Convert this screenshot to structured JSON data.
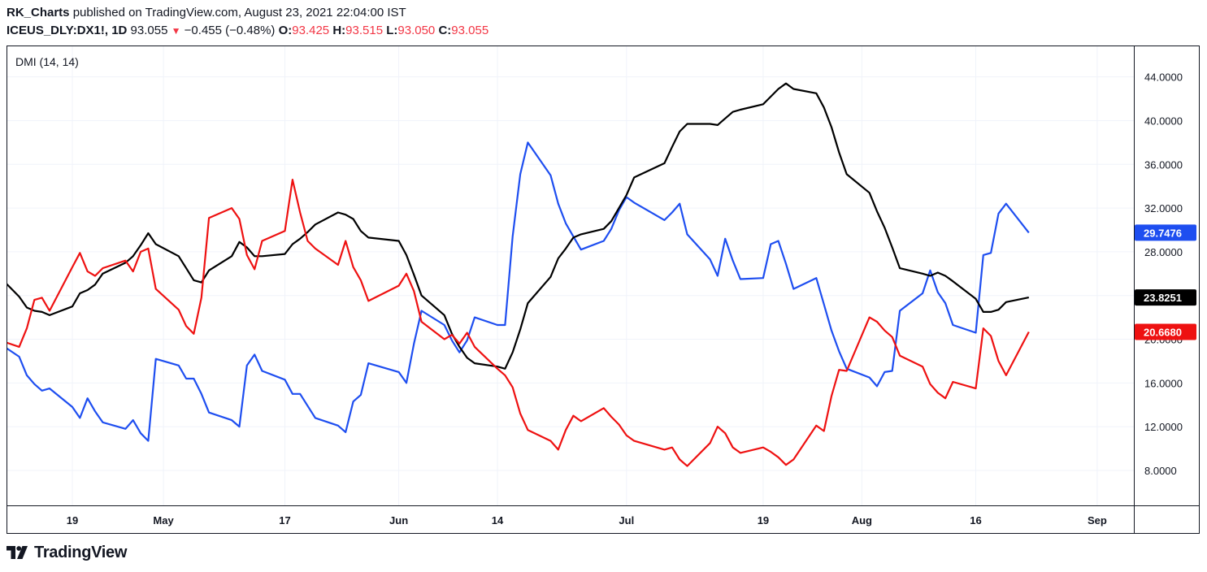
{
  "header": {
    "author": "RK_Charts",
    "published_text": "published on TradingView.com, August 23, 2021 22:04:00 IST",
    "symbol": "ICEUS_DLY:DX1!, 1D",
    "last": "93.055",
    "change_arrow": "▼",
    "change": "−0.455 (−0.48%)",
    "o_label": "O:",
    "o_value": "93.425",
    "h_label": "H:",
    "h_value": "93.515",
    "l_label": "L:",
    "l_value": "93.050",
    "c_label": "C:",
    "c_value": "93.055"
  },
  "indicator_label": "DMI (14, 14)",
  "footer": {
    "brand": "TradingView",
    "logo_icon": "tradingview-logo-icon"
  },
  "colors": {
    "plus_di": "#1e4ef0",
    "minus_di": "#ee1111",
    "adx": "#000000",
    "grid": "#f0f3fa"
  },
  "chart_data": {
    "type": "line",
    "title": "DMI (14, 14)",
    "x_tick_labels": [
      "19",
      "May",
      "17",
      "Jun",
      "14",
      "Jul",
      "19",
      "Aug",
      "16",
      "Sep"
    ],
    "ylim": [
      4.8,
      46.8
    ],
    "y_tick_values": [
      8,
      12,
      16,
      20,
      24,
      28,
      32,
      36,
      40,
      44
    ],
    "y_tick_labels": [
      "8.0000",
      "12.0000",
      "16.0000",
      "20.0000",
      "24.0000",
      "28.0000",
      "32.0000",
      "36.0000",
      "40.0000",
      "44.0000"
    ],
    "grid": true,
    "last_value_badges": [
      {
        "series": "+DI",
        "label": "29.7476",
        "value": 29.7476
      },
      {
        "series": "ADX",
        "label": "23.8251",
        "value": 23.8251
      },
      {
        "series": "-DI",
        "label": "20.6680",
        "value": 20.668
      }
    ],
    "dates": [
      "2021-04-09",
      "2021-04-12",
      "2021-04-13",
      "2021-04-14",
      "2021-04-15",
      "2021-04-16",
      "2021-04-19",
      "2021-04-20",
      "2021-04-21",
      "2021-04-22",
      "2021-04-23",
      "2021-04-26",
      "2021-04-27",
      "2021-04-28",
      "2021-04-29",
      "2021-04-30",
      "2021-05-03",
      "2021-05-04",
      "2021-05-05",
      "2021-05-06",
      "2021-05-07",
      "2021-05-10",
      "2021-05-11",
      "2021-05-12",
      "2021-05-13",
      "2021-05-14",
      "2021-05-17",
      "2021-05-18",
      "2021-05-19",
      "2021-05-20",
      "2021-05-21",
      "2021-05-24",
      "2021-05-25",
      "2021-05-26",
      "2021-05-27",
      "2021-05-28",
      "2021-06-01",
      "2021-06-02",
      "2021-06-03",
      "2021-06-04",
      "2021-06-07",
      "2021-06-08",
      "2021-06-09",
      "2021-06-10",
      "2021-06-11",
      "2021-06-14",
      "2021-06-15",
      "2021-06-16",
      "2021-06-17",
      "2021-06-18",
      "2021-06-21",
      "2021-06-22",
      "2021-06-23",
      "2021-06-24",
      "2021-06-25",
      "2021-06-28",
      "2021-06-29",
      "2021-06-30",
      "2021-07-01",
      "2021-07-02",
      "2021-07-06",
      "2021-07-07",
      "2021-07-08",
      "2021-07-09",
      "2021-07-12",
      "2021-07-13",
      "2021-07-14",
      "2021-07-15",
      "2021-07-16",
      "2021-07-19",
      "2021-07-20",
      "2021-07-21",
      "2021-07-22",
      "2021-07-23",
      "2021-07-26",
      "2021-07-27",
      "2021-07-28",
      "2021-07-29",
      "2021-07-30",
      "2021-08-02",
      "2021-08-03",
      "2021-08-04",
      "2021-08-05",
      "2021-08-06",
      "2021-08-09",
      "2021-08-10",
      "2021-08-11",
      "2021-08-12",
      "2021-08-13",
      "2021-08-16",
      "2021-08-17",
      "2021-08-18",
      "2021-08-19",
      "2021-08-20",
      "2021-08-23"
    ],
    "series": [
      {
        "name": "+DI",
        "color": "#1e4ef0",
        "values": [
          19.8,
          18.4,
          16.7,
          15.9,
          15.3,
          15.5,
          13.8,
          12.8,
          14.6,
          13.4,
          12.4,
          11.8,
          12.6,
          11.4,
          10.7,
          18.2,
          17.6,
          16.4,
          16.4,
          15.0,
          13.3,
          12.6,
          12.0,
          17.6,
          18.6,
          17.1,
          16.3,
          15.0,
          15.0,
          13.9,
          12.8,
          12.1,
          11.5,
          14.3,
          14.9,
          17.8,
          17.0,
          16.0,
          19.6,
          22.6,
          21.3,
          19.9,
          18.8,
          19.9,
          22.0,
          21.3,
          21.3,
          29.4,
          35.1,
          38.0,
          35.0,
          32.4,
          30.6,
          29.4,
          28.2,
          29.0,
          30.1,
          31.8,
          33.0,
          32.5,
          30.9,
          31.6,
          32.4,
          29.6,
          27.3,
          25.8,
          29.2,
          27.2,
          25.5,
          25.6,
          28.7,
          29.0,
          26.9,
          24.6,
          25.6,
          23.2,
          20.8,
          18.9,
          17.3,
          16.5,
          15.7,
          17.0,
          17.1,
          22.6,
          24.2,
          26.3,
          24.3,
          23.3,
          21.3,
          20.6,
          27.7,
          27.9,
          31.5,
          32.4,
          29.7476
        ]
      },
      {
        "name": "-DI",
        "color": "#ee1111",
        "values": [
          20.0,
          19.3,
          21.0,
          23.6,
          23.8,
          22.6,
          26.6,
          27.9,
          26.2,
          25.8,
          26.5,
          27.2,
          26.2,
          28.0,
          28.3,
          24.6,
          22.7,
          21.2,
          20.5,
          23.8,
          31.1,
          32.0,
          31.0,
          27.7,
          26.4,
          29.0,
          29.9,
          34.6,
          31.6,
          29.0,
          28.3,
          26.8,
          29.0,
          26.6,
          25.4,
          23.5,
          24.9,
          26.0,
          24.4,
          21.6,
          20.0,
          20.4,
          19.6,
          20.6,
          19.3,
          17.3,
          16.7,
          15.6,
          13.2,
          11.7,
          10.7,
          9.9,
          11.7,
          13.0,
          12.5,
          13.7,
          12.9,
          12.2,
          11.2,
          10.7,
          9.9,
          10.1,
          9.0,
          8.4,
          10.5,
          12.0,
          11.4,
          10.1,
          9.6,
          10.1,
          9.7,
          9.2,
          8.5,
          9.0,
          12.1,
          11.6,
          14.8,
          17.2,
          17.1,
          22.0,
          21.6,
          20.8,
          20.2,
          18.5,
          17.5,
          15.9,
          15.1,
          14.6,
          16.1,
          15.5,
          21.0,
          20.3,
          18.0,
          16.7,
          20.668
        ]
      },
      {
        "name": "ADX",
        "color": "#000000",
        "values": [
          26.0,
          23.9,
          22.9,
          22.6,
          22.5,
          22.2,
          23.0,
          24.2,
          24.5,
          25.0,
          26.0,
          27.0,
          27.6,
          28.6,
          29.7,
          28.7,
          27.6,
          26.5,
          25.4,
          25.2,
          26.3,
          27.6,
          28.9,
          28.4,
          27.6,
          27.6,
          27.8,
          28.7,
          29.2,
          29.8,
          30.5,
          31.6,
          31.4,
          31.0,
          29.9,
          29.3,
          29.0,
          27.7,
          25.9,
          24.0,
          22.2,
          20.5,
          19.3,
          18.3,
          17.8,
          17.5,
          17.3,
          18.8,
          20.9,
          23.3,
          25.7,
          27.4,
          28.3,
          29.3,
          29.6,
          30.1,
          30.8,
          32.0,
          33.2,
          34.8,
          36.1,
          37.6,
          39.0,
          39.7,
          39.7,
          39.6,
          40.2,
          40.8,
          41.0,
          41.5,
          42.2,
          42.9,
          43.4,
          42.9,
          42.5,
          41.2,
          39.4,
          37.1,
          35.1,
          33.4,
          31.7,
          30.2,
          28.4,
          26.5,
          26.0,
          25.8,
          26.1,
          25.8,
          25.3,
          23.7,
          22.5,
          22.5,
          22.7,
          23.4,
          23.8251
        ]
      }
    ]
  }
}
